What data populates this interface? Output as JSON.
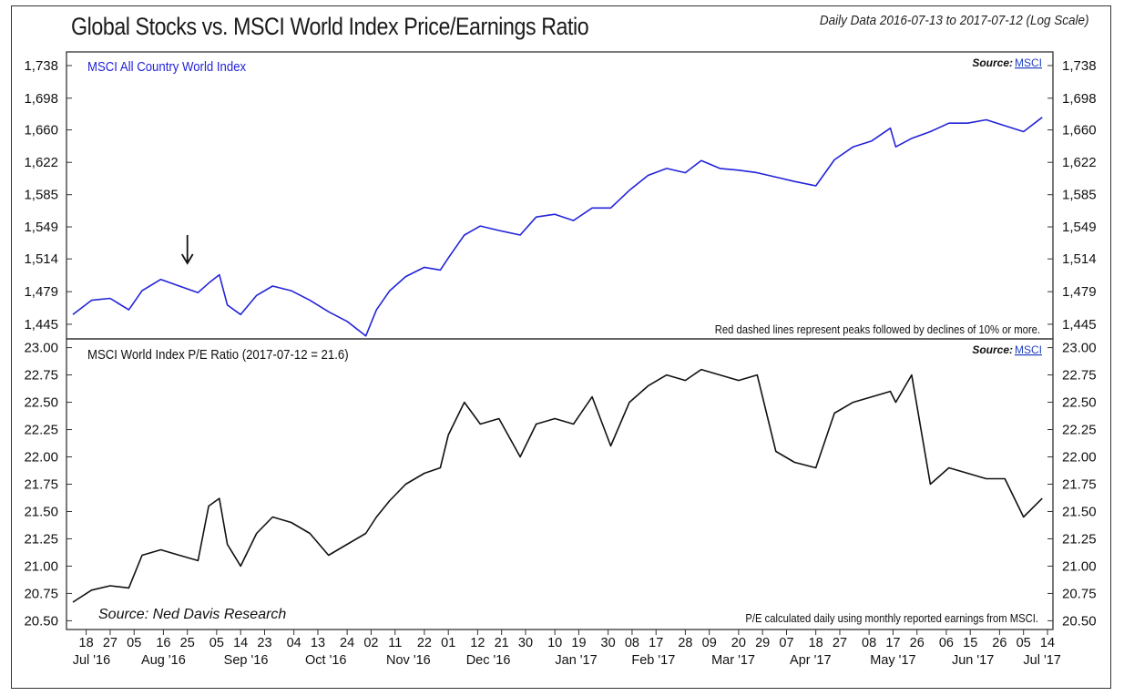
{
  "header": {
    "title": "Global Stocks vs. MSCI World Index Price/Earnings Ratio",
    "subtitle": "Daily Data 2016-07-13 to 2017-07-12 (Log Scale)"
  },
  "panels": {
    "top": {
      "label": "MSCI All Country World Index",
      "source_prefix": "Source:",
      "source_link": "MSCI",
      "note": "Red dashed lines represent peaks followed by declines of 10% or more."
    },
    "bottom": {
      "label": "MSCI World Index P/E Ratio (2017-07-12 = 21.6)",
      "source_prefix": "Source:",
      "source_link": "MSCI",
      "note": "P/E calculated daily using monthly reported earnings from MSCI.",
      "credit": "Source: Ned Davis Research"
    }
  },
  "colors": {
    "top_series": "#2323d8",
    "bottom_series": "#111111",
    "link": "#1f3fbf"
  },
  "chart_data": [
    {
      "type": "line",
      "scale": "log",
      "ylim": [
        1430,
        1755
      ],
      "yticks": [
        "1,738",
        "1,698",
        "1,660",
        "1,622",
        "1,585",
        "1,549",
        "1,514",
        "1,479",
        "1,445"
      ],
      "ytick_values": [
        1738,
        1698,
        1660,
        1622,
        1585,
        1549,
        1514,
        1479,
        1445
      ],
      "annotation": {
        "type": "arrow",
        "date": "2016-08-25",
        "direction": "down"
      },
      "series": [
        {
          "x": [
            "2016-07-13",
            "2016-07-20",
            "2016-07-27",
            "2016-08-03",
            "2016-08-08",
            "2016-08-15",
            "2016-08-22",
            "2016-08-29",
            "2016-09-02",
            "2016-09-06",
            "2016-09-09",
            "2016-09-14",
            "2016-09-20",
            "2016-09-26",
            "2016-10-03",
            "2016-10-10",
            "2016-10-17",
            "2016-10-24",
            "2016-10-31",
            "2016-11-04",
            "2016-11-09",
            "2016-11-15",
            "2016-11-22",
            "2016-11-28",
            "2016-12-01",
            "2016-12-07",
            "2016-12-13",
            "2016-12-20",
            "2016-12-28",
            "2017-01-03",
            "2017-01-10",
            "2017-01-17",
            "2017-01-24",
            "2017-01-31",
            "2017-02-07",
            "2017-02-14",
            "2017-02-21",
            "2017-02-28",
            "2017-03-06",
            "2017-03-13",
            "2017-03-20",
            "2017-03-27",
            "2017-04-03",
            "2017-04-10",
            "2017-04-18",
            "2017-04-25",
            "2017-05-02",
            "2017-05-09",
            "2017-05-16",
            "2017-05-18",
            "2017-05-24",
            "2017-05-31",
            "2017-06-07",
            "2017-06-14",
            "2017-06-21",
            "2017-06-28",
            "2017-07-05",
            "2017-07-12"
          ],
          "y": [
            1455,
            1470,
            1472,
            1460,
            1480,
            1492,
            1485,
            1478,
            1488,
            1497,
            1465,
            1455,
            1475,
            1485,
            1480,
            1470,
            1458,
            1448,
            1433,
            1460,
            1480,
            1495,
            1505,
            1502,
            1515,
            1540,
            1550,
            1545,
            1540,
            1560,
            1563,
            1556,
            1570,
            1570,
            1590,
            1607,
            1615,
            1610,
            1624,
            1615,
            1613,
            1610,
            1605,
            1600,
            1595,
            1625,
            1640,
            1647,
            1662,
            1640,
            1650,
            1658,
            1668,
            1668,
            1672,
            1665,
            1658,
            1675
          ]
        }
      ]
    },
    {
      "type": "line",
      "ylim": [
        20.5,
        23.0
      ],
      "yticks": [
        "23.00",
        "22.75",
        "22.50",
        "22.25",
        "22.00",
        "21.75",
        "21.50",
        "21.25",
        "21.00",
        "20.75",
        "20.50"
      ],
      "ytick_values": [
        23.0,
        22.75,
        22.5,
        22.25,
        22.0,
        21.75,
        21.5,
        21.25,
        21.0,
        20.75,
        20.5
      ],
      "series": [
        {
          "x": [
            "2016-07-13",
            "2016-07-20",
            "2016-07-27",
            "2016-08-03",
            "2016-08-08",
            "2016-08-15",
            "2016-08-22",
            "2016-08-29",
            "2016-09-02",
            "2016-09-06",
            "2016-09-09",
            "2016-09-14",
            "2016-09-20",
            "2016-09-26",
            "2016-10-03",
            "2016-10-10",
            "2016-10-17",
            "2016-10-24",
            "2016-10-31",
            "2016-11-04",
            "2016-11-09",
            "2016-11-15",
            "2016-11-22",
            "2016-11-28",
            "2016-12-01",
            "2016-12-07",
            "2016-12-13",
            "2016-12-20",
            "2016-12-28",
            "2017-01-03",
            "2017-01-10",
            "2017-01-17",
            "2017-01-24",
            "2017-01-31",
            "2017-02-07",
            "2017-02-14",
            "2017-02-21",
            "2017-02-28",
            "2017-03-06",
            "2017-03-13",
            "2017-03-20",
            "2017-03-27",
            "2017-04-03",
            "2017-04-10",
            "2017-04-18",
            "2017-04-25",
            "2017-05-02",
            "2017-05-09",
            "2017-05-16",
            "2017-05-18",
            "2017-05-24",
            "2017-05-31",
            "2017-06-07",
            "2017-06-14",
            "2017-06-21",
            "2017-06-28",
            "2017-07-05",
            "2017-07-12"
          ],
          "y": [
            20.67,
            20.78,
            20.82,
            20.8,
            21.1,
            21.15,
            21.1,
            21.05,
            21.55,
            21.62,
            21.2,
            21.0,
            21.3,
            21.45,
            21.4,
            21.3,
            21.1,
            21.2,
            21.3,
            21.45,
            21.6,
            21.75,
            21.85,
            21.9,
            22.2,
            22.5,
            22.3,
            22.35,
            22.0,
            22.3,
            22.35,
            22.3,
            22.55,
            22.1,
            22.5,
            22.65,
            22.75,
            22.7,
            22.8,
            22.75,
            22.7,
            22.75,
            22.05,
            21.95,
            21.9,
            22.4,
            22.5,
            22.55,
            22.6,
            22.5,
            22.75,
            21.75,
            21.9,
            21.85,
            21.8,
            21.8,
            21.45,
            21.62
          ]
        }
      ]
    }
  ],
  "xaxis": {
    "day_ticks": [
      {
        "date": "2016-07-18",
        "label": "18"
      },
      {
        "date": "2016-07-27",
        "label": "27"
      },
      {
        "date": "2016-08-05",
        "label": "05"
      },
      {
        "date": "2016-08-16",
        "label": "16"
      },
      {
        "date": "2016-08-25",
        "label": "25"
      },
      {
        "date": "2016-09-05",
        "label": "05"
      },
      {
        "date": "2016-09-14",
        "label": "14"
      },
      {
        "date": "2016-09-23",
        "label": "23"
      },
      {
        "date": "2016-10-04",
        "label": "04"
      },
      {
        "date": "2016-10-13",
        "label": "13"
      },
      {
        "date": "2016-10-24",
        "label": "24"
      },
      {
        "date": "2016-11-02",
        "label": "02"
      },
      {
        "date": "2016-11-11",
        "label": "11"
      },
      {
        "date": "2016-11-22",
        "label": "22"
      },
      {
        "date": "2016-12-01",
        "label": "01"
      },
      {
        "date": "2016-12-12",
        "label": "12"
      },
      {
        "date": "2016-12-21",
        "label": "21"
      },
      {
        "date": "2016-12-30",
        "label": "30"
      },
      {
        "date": "2017-01-10",
        "label": "10"
      },
      {
        "date": "2017-01-19",
        "label": "19"
      },
      {
        "date": "2017-01-30",
        "label": "30"
      },
      {
        "date": "2017-02-08",
        "label": "08"
      },
      {
        "date": "2017-02-17",
        "label": "17"
      },
      {
        "date": "2017-02-28",
        "label": "28"
      },
      {
        "date": "2017-03-09",
        "label": "09"
      },
      {
        "date": "2017-03-20",
        "label": "20"
      },
      {
        "date": "2017-03-29",
        "label": "29"
      },
      {
        "date": "2017-04-07",
        "label": "07"
      },
      {
        "date": "2017-04-18",
        "label": "18"
      },
      {
        "date": "2017-04-27",
        "label": "27"
      },
      {
        "date": "2017-05-08",
        "label": "08"
      },
      {
        "date": "2017-05-17",
        "label": "17"
      },
      {
        "date": "2017-05-26",
        "label": "26"
      },
      {
        "date": "2017-06-06",
        "label": "06"
      },
      {
        "date": "2017-06-15",
        "label": "15"
      },
      {
        "date": "2017-06-26",
        "label": "26"
      },
      {
        "date": "2017-07-05",
        "label": "05"
      },
      {
        "date": "2017-07-14",
        "label": "14"
      }
    ],
    "month_labels": [
      {
        "date": "2016-07-20",
        "label": "Jul '16"
      },
      {
        "date": "2016-08-16",
        "label": "Aug '16"
      },
      {
        "date": "2016-09-16",
        "label": "Sep '16"
      },
      {
        "date": "2016-10-16",
        "label": "Oct '16"
      },
      {
        "date": "2016-11-16",
        "label": "Nov '16"
      },
      {
        "date": "2016-12-16",
        "label": "Dec '16"
      },
      {
        "date": "2017-01-18",
        "label": "Jan '17"
      },
      {
        "date": "2017-02-16",
        "label": "Feb '17"
      },
      {
        "date": "2017-03-18",
        "label": "Mar '17"
      },
      {
        "date": "2017-04-16",
        "label": "Apr '17"
      },
      {
        "date": "2017-05-17",
        "label": "May '17"
      },
      {
        "date": "2017-06-16",
        "label": "Jun '17"
      },
      {
        "date": "2017-07-12",
        "label": "Jul '17"
      }
    ]
  }
}
